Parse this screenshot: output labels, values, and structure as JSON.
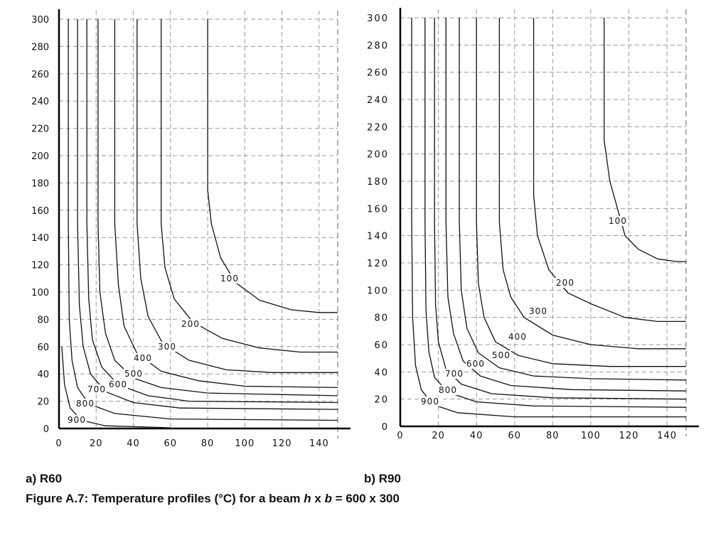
{
  "chart_data": [
    {
      "type": "line",
      "panel_label": "a) R60",
      "xlim": [
        0,
        150
      ],
      "ylim": [
        0,
        300
      ],
      "x_ticks": [
        "0",
        "20",
        "40",
        "60",
        "80",
        "100",
        "120",
        "140"
      ],
      "y_ticks": [
        "0",
        "20",
        "40",
        "60",
        "80",
        "100",
        "120",
        "140",
        "160",
        "180",
        "200",
        "220",
        "240",
        "260",
        "280",
        "300"
      ],
      "grid": true,
      "series": [
        {
          "name": "100",
          "points": [
            [
              80,
              300
            ],
            [
              80,
              175
            ],
            [
              82,
              150
            ],
            [
              87,
              125
            ],
            [
              95,
              107
            ],
            [
              108,
              94
            ],
            [
              125,
              87
            ],
            [
              140,
              85
            ],
            [
              150,
              85
            ]
          ]
        },
        {
          "name": "200",
          "points": [
            [
              55,
              300
            ],
            [
              55,
              150
            ],
            [
              57,
              118
            ],
            [
              62,
              95
            ],
            [
              72,
              78
            ],
            [
              88,
              66
            ],
            [
              108,
              59
            ],
            [
              130,
              56
            ],
            [
              150,
              56
            ]
          ]
        },
        {
          "name": "300",
          "points": [
            [
              42,
              300
            ],
            [
              42,
              150
            ],
            [
              44,
              110
            ],
            [
              48,
              82
            ],
            [
              56,
              62
            ],
            [
              70,
              50
            ],
            [
              90,
              43
            ],
            [
              115,
              41
            ],
            [
              150,
              41
            ]
          ]
        },
        {
          "name": "400",
          "points": [
            [
              30,
              300
            ],
            [
              30,
              150
            ],
            [
              32,
              105
            ],
            [
              35,
              75
            ],
            [
              42,
              55
            ],
            [
              55,
              42
            ],
            [
              75,
              35
            ],
            [
              100,
              31
            ],
            [
              150,
              30
            ]
          ]
        },
        {
          "name": "500",
          "points": [
            [
              21,
              300
            ],
            [
              21,
              150
            ],
            [
              22,
              100
            ],
            [
              25,
              70
            ],
            [
              30,
              50
            ],
            [
              40,
              37
            ],
            [
              55,
              30
            ],
            [
              80,
              26
            ],
            [
              150,
              24
            ]
          ]
        },
        {
          "name": "600",
          "points": [
            [
              15,
              300
            ],
            [
              15,
              150
            ],
            [
              16,
              95
            ],
            [
              18,
              65
            ],
            [
              23,
              45
            ],
            [
              32,
              32
            ],
            [
              48,
              24
            ],
            [
              70,
              20
            ],
            [
              150,
              19
            ]
          ]
        },
        {
          "name": "700",
          "points": [
            [
              10,
              300
            ],
            [
              10,
              150
            ],
            [
              11,
              90
            ],
            [
              13,
              60
            ],
            [
              17,
              40
            ],
            [
              25,
              27
            ],
            [
              40,
              19
            ],
            [
              65,
              15
            ],
            [
              150,
              14
            ]
          ]
        },
        {
          "name": "800",
          "points": [
            [
              5,
              300
            ],
            [
              5,
              150
            ],
            [
              5.5,
              80
            ],
            [
              7,
              50
            ],
            [
              10,
              30
            ],
            [
              16,
              18
            ],
            [
              30,
              11
            ],
            [
              60,
              7
            ],
            [
              150,
              6
            ]
          ]
        },
        {
          "name": "900",
          "points": [
            [
              1.5,
              60
            ],
            [
              3,
              32
            ],
            [
              6,
              15
            ],
            [
              12,
              6
            ],
            [
              25,
              2
            ],
            [
              60,
              0.5
            ]
          ]
        }
      ]
    },
    {
      "type": "line",
      "panel_label": "b) R90",
      "xlim": [
        0,
        150
      ],
      "ylim": [
        0,
        300
      ],
      "x_ticks": [
        "0",
        "20",
        "40",
        "60",
        "80",
        "100",
        "120",
        "140"
      ],
      "y_ticks": [
        "0",
        "20",
        "40",
        "60",
        "80",
        "100",
        "120",
        "140",
        "160",
        "180",
        "200",
        "220",
        "240",
        "260",
        "280",
        "300"
      ],
      "grid": true,
      "series": [
        {
          "name": "100",
          "points": [
            [
              107,
              300
            ],
            [
              107,
              210
            ],
            [
              110,
              180
            ],
            [
              115,
              155
            ],
            [
              118,
              140
            ],
            [
              125,
              130
            ],
            [
              135,
              123
            ],
            [
              145,
              121
            ],
            [
              150,
              121
            ]
          ]
        },
        {
          "name": "200",
          "points": [
            [
              70,
              300
            ],
            [
              70,
              170
            ],
            [
              72,
              140
            ],
            [
              78,
              115
            ],
            [
              88,
              98
            ],
            [
              100,
              90
            ],
            [
              118,
              80
            ],
            [
              135,
              77
            ],
            [
              150,
              77
            ]
          ]
        },
        {
          "name": "300",
          "points": [
            [
              52,
              300
            ],
            [
              52,
              150
            ],
            [
              54,
              115
            ],
            [
              58,
              95
            ],
            [
              65,
              80
            ],
            [
              80,
              67
            ],
            [
              100,
              60
            ],
            [
              125,
              57
            ],
            [
              150,
              57
            ]
          ]
        },
        {
          "name": "400",
          "points": [
            [
              40,
              300
            ],
            [
              40,
              150
            ],
            [
              41,
              105
            ],
            [
              44,
              80
            ],
            [
              50,
              62
            ],
            [
              62,
              52
            ],
            [
              80,
              46
            ],
            [
              110,
              44
            ],
            [
              150,
              44
            ]
          ]
        },
        {
          "name": "500",
          "points": [
            [
              31,
              300
            ],
            [
              31,
              150
            ],
            [
              32,
              100
            ],
            [
              35,
              72
            ],
            [
              41,
              54
            ],
            [
              52,
              43
            ],
            [
              70,
              37
            ],
            [
              100,
              35
            ],
            [
              150,
              34
            ]
          ]
        },
        {
          "name": "600",
          "points": [
            [
              24,
              300
            ],
            [
              24,
              150
            ],
            [
              25,
              95
            ],
            [
              28,
              68
            ],
            [
              33,
              48
            ],
            [
              42,
              37
            ],
            [
              58,
              30
            ],
            [
              90,
              27
            ],
            [
              150,
              26
            ]
          ]
        },
        {
          "name": "700",
          "points": [
            [
              18,
              300
            ],
            [
              18,
              150
            ],
            [
              18.5,
              90
            ],
            [
              20,
              62
            ],
            [
              24,
              42
            ],
            [
              32,
              31
            ],
            [
              48,
              24
            ],
            [
              80,
              21
            ],
            [
              150,
              20
            ]
          ]
        },
        {
          "name": "800",
          "points": [
            [
              13,
              300
            ],
            [
              13,
              150
            ],
            [
              13.5,
              85
            ],
            [
              15,
              55
            ],
            [
              18,
              36
            ],
            [
              25,
              25
            ],
            [
              40,
              18
            ],
            [
              70,
              15
            ],
            [
              150,
              14
            ]
          ]
        },
        {
          "name": "900",
          "points": [
            [
              6,
              300
            ],
            [
              6,
              150
            ],
            [
              6.5,
              80
            ],
            [
              8,
              45
            ],
            [
              11,
              27
            ],
            [
              17,
              16
            ],
            [
              30,
              10
            ],
            [
              60,
              7
            ],
            [
              150,
              7
            ]
          ]
        }
      ]
    }
  ],
  "caption": {
    "prefix": "Figure A.7:  Temperature profiles (°C) for a beam ",
    "h": "h",
    "x1": " x ",
    "b": "b",
    "suffix": " = 600 x 300"
  }
}
